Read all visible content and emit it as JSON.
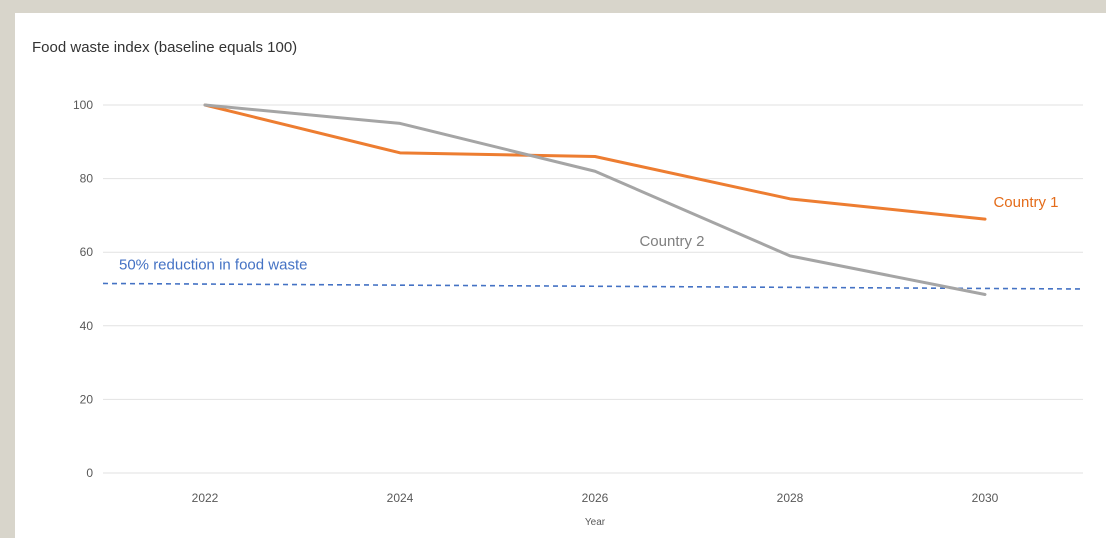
{
  "chart_data": {
    "type": "line",
    "title": "Food waste index (baseline equals 100)",
    "xlabel": "Year",
    "ylabel": "",
    "x": [
      "2022",
      "2024",
      "2026",
      "2028",
      "2030"
    ],
    "ylim": [
      0,
      100
    ],
    "yticks": [
      "0",
      "20",
      "40",
      "60",
      "80",
      "100"
    ],
    "grid": true,
    "series": [
      {
        "name": "Country 1",
        "values": [
          100,
          87,
          86,
          74.5,
          69
        ],
        "color": "#ed7d31"
      },
      {
        "name": "Country 2",
        "values": [
          100,
          95,
          82,
          59,
          48.5
        ],
        "color": "#a5a5a5"
      }
    ],
    "reference_line": {
      "label": "50% reduction in food waste",
      "y_start": 51.5,
      "y_end": 50,
      "color": "#4472c4"
    }
  }
}
